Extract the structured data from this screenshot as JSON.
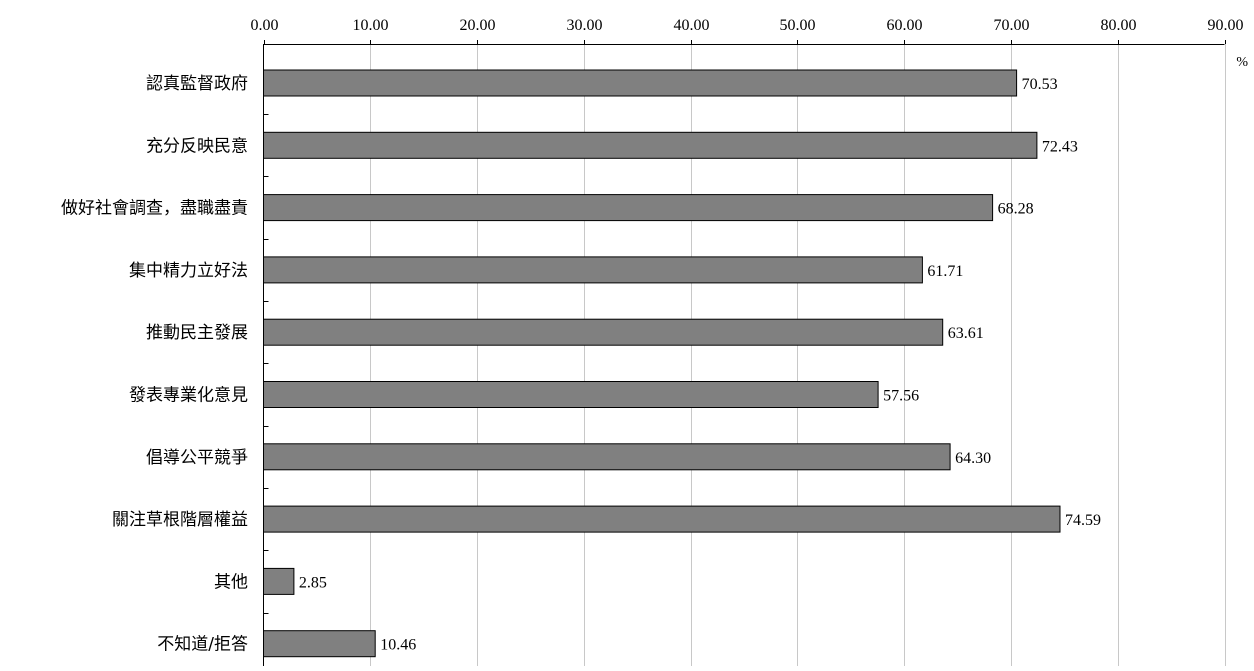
{
  "chart_data": {
    "type": "bar",
    "orientation": "horizontal",
    "categories": [
      "認真監督政府",
      "充分反映民意",
      "做好社會調查，盡職盡責",
      "集中精力立好法",
      "推動民主發展",
      "發表專業化意見",
      "倡導公平競爭",
      "關注草根階層權益",
      "其他",
      "不知道/拒答"
    ],
    "values": [
      70.53,
      72.43,
      68.28,
      61.71,
      63.61,
      57.56,
      64.3,
      74.59,
      2.85,
      10.46
    ],
    "value_labels": [
      "70.53",
      "72.43",
      "68.28",
      "61.71",
      "63.61",
      "57.56",
      "64.30",
      "74.59",
      "2.85",
      "10.46"
    ],
    "x_ticks": [
      "0.00",
      "10.00",
      "20.00",
      "30.00",
      "40.00",
      "50.00",
      "60.00",
      "70.00",
      "80.00",
      "90.00"
    ],
    "xlim": [
      0,
      90
    ],
    "unit": "%",
    "axis_position": "top",
    "grid": true,
    "bar_color": "#808080",
    "bar_edge_color": "#000000",
    "grid_color": "#c8c8c8"
  }
}
